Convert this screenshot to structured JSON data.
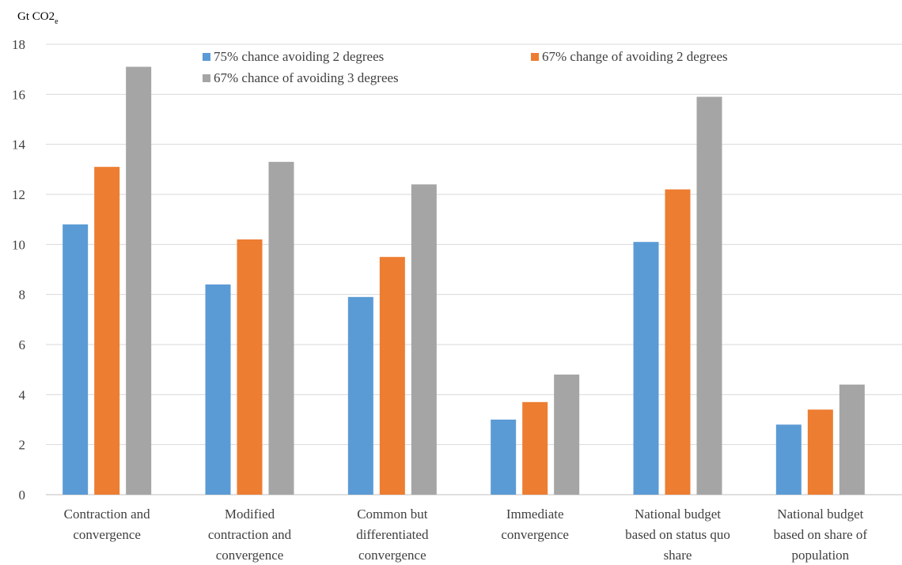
{
  "chart_data": {
    "type": "bar",
    "ylabel": "Gt CO2",
    "ylabel_subscript": "e",
    "ylim": [
      0,
      18
    ],
    "yticks": [
      0,
      2,
      4,
      6,
      8,
      10,
      12,
      14,
      16,
      18
    ],
    "grid": true,
    "legend_position": "top",
    "categories": [
      [
        "Contraction and",
        "convergence"
      ],
      [
        "Modified",
        "contraction and",
        "convergence"
      ],
      [
        "Common but",
        "differentiated",
        "convergence"
      ],
      [
        "Immediate",
        "convergence"
      ],
      [
        "National budget",
        "based on status quo",
        "share"
      ],
      [
        "National budget",
        "based on share of",
        "population"
      ]
    ],
    "series": [
      {
        "name": "75% chance avoiding 2 degrees",
        "color": "#5b9bd5",
        "values": [
          10.8,
          8.4,
          7.9,
          3.0,
          10.1,
          2.8
        ]
      },
      {
        "name": "67% change of avoiding 2 degrees",
        "color": "#ed7d31",
        "values": [
          13.1,
          10.2,
          9.5,
          3.7,
          12.2,
          3.4
        ]
      },
      {
        "name": "67% chance of avoiding 3 degrees",
        "color": "#a5a5a5",
        "values": [
          17.1,
          13.3,
          12.4,
          4.8,
          15.9,
          4.4
        ]
      }
    ]
  }
}
